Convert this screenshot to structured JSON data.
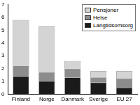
{
  "chart_data": {
    "type": "bar",
    "stacked": true,
    "categories": [
      "Finland",
      "Norge",
      "Danmark",
      "Sverige",
      "EU 27"
    ],
    "series": [
      {
        "name": "Langtidsomsorg",
        "color": "#1a1a1a",
        "values": [
          1.4,
          1.0,
          1.3,
          0.9,
          0.5
        ]
      },
      {
        "name": "Helse",
        "color": "#8c8c8c",
        "values": [
          0.8,
          0.7,
          0.7,
          0.4,
          0.7
        ]
      },
      {
        "name": "Pensjoner",
        "color": "#d4d4d4",
        "values": [
          3.6,
          3.6,
          0.6,
          0.5,
          0.6
        ]
      }
    ],
    "ylim": [
      0,
      7
    ],
    "yticks": [
      0,
      1,
      2,
      3,
      4,
      5,
      6,
      7
    ],
    "grid": false,
    "legend": "upper right"
  }
}
